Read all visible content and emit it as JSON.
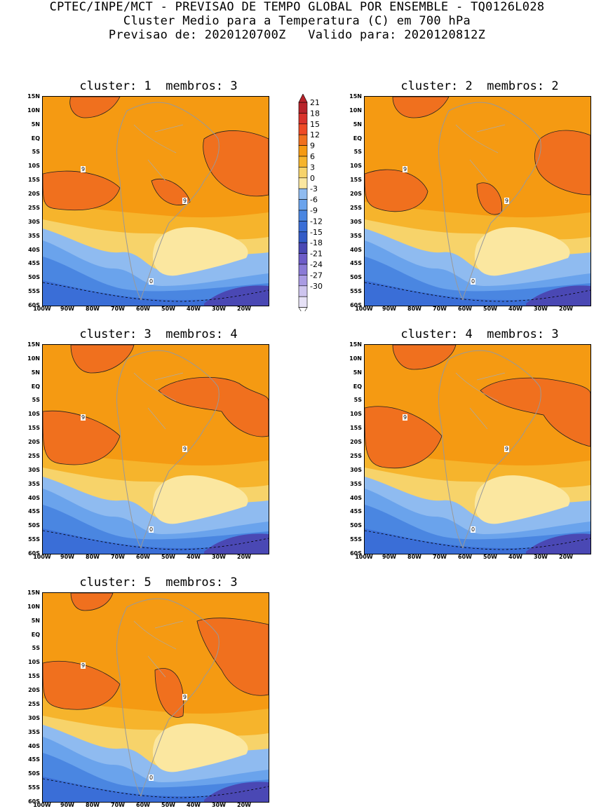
{
  "header": {
    "line1": "CPTEC/INPE/MCT - PREVISAO DE TEMPO GLOBAL POR ENSEMBLE - TQ0126L028",
    "line2": "Cluster Medio para a Temperatura (C) em 700 hPa",
    "line3": "Previsao de: 2020120700Z   Valido para: 2020120812Z"
  },
  "panels": [
    {
      "title": "cluster: 1  membros: 3"
    },
    {
      "title": "cluster: 2  membros: 2"
    },
    {
      "title": "cluster: 3  membros: 4"
    },
    {
      "title": "cluster: 4  membros: 3"
    },
    {
      "title": "cluster: 5  membros: 3"
    }
  ],
  "lat_labels": [
    "15N",
    "10N",
    "5N",
    "EQ",
    "5S",
    "10S",
    "15S",
    "20S",
    "25S",
    "30S",
    "35S",
    "40S",
    "45S",
    "50S",
    "55S",
    "60S"
  ],
  "lon_labels": [
    "100W",
    "90W",
    "80W",
    "70W",
    "60W",
    "50W",
    "40W",
    "30W",
    "20W"
  ],
  "contour_labels": {
    "nine": "9",
    "zero": "0"
  },
  "colorbar": {
    "labels": [
      "21",
      "18",
      "15",
      "12",
      "9",
      "6",
      "3",
      "0",
      "-3",
      "-6",
      "-9",
      "-12",
      "-15",
      "-18",
      "-21",
      "-24",
      "-27",
      "-30"
    ],
    "colors": [
      "#b8232a",
      "#d9322b",
      "#ee4a25",
      "#f0701e",
      "#f59a12",
      "#f6b42c",
      "#f7d36a",
      "#fbe7a0",
      "#8fbbf0",
      "#6aa3ec",
      "#4a86e1",
      "#3a6ed7",
      "#335bc7",
      "#4a48b4",
      "#6d5cc8",
      "#8a7ad6",
      "#a99be3",
      "#cdc4ee",
      "#e6e1f6"
    ]
  }
}
